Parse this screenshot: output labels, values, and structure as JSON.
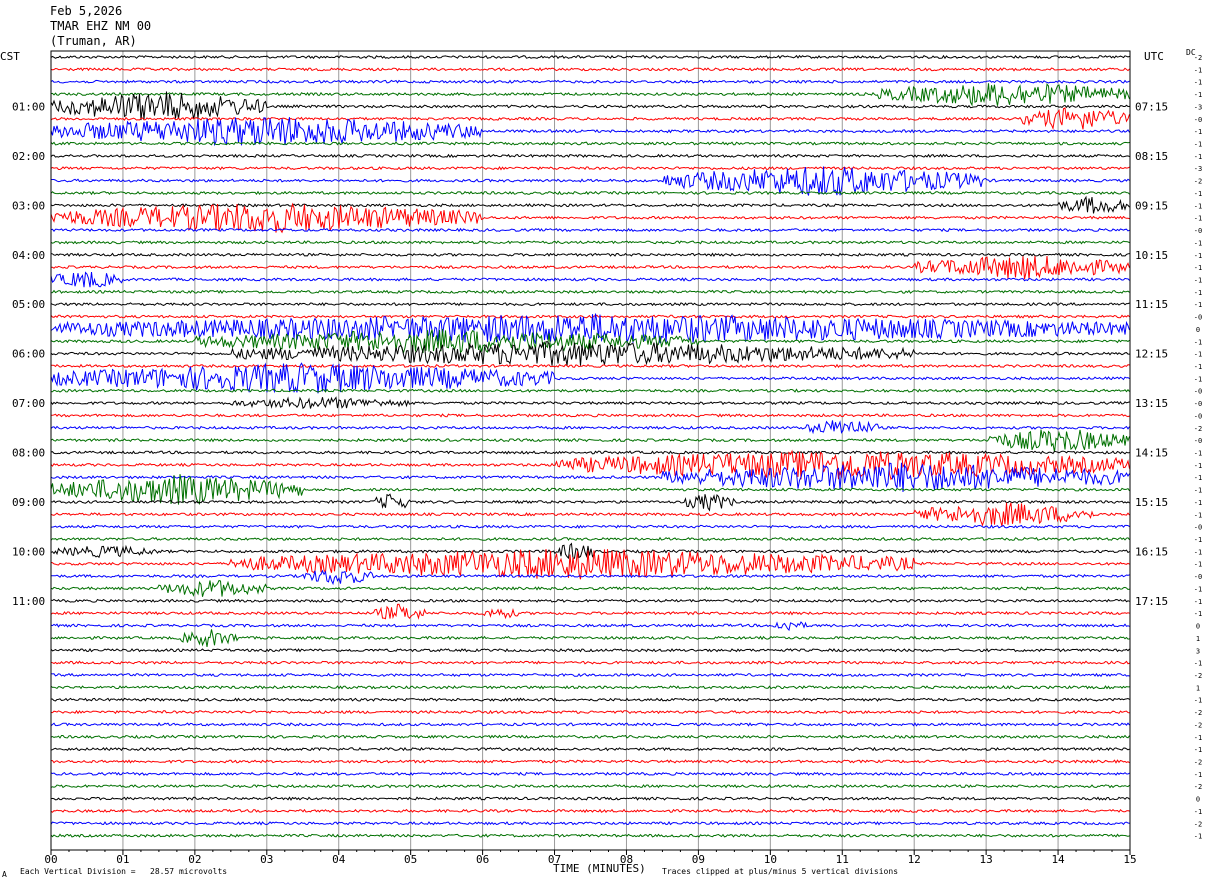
{
  "header": {
    "date": "Feb 5,2026",
    "station": "TMAR EHZ NM 00",
    "location": "(Truman, AR)"
  },
  "left_tz": "CST",
  "right_tz": "UTC",
  "dc_label": "DC",
  "footer": {
    "division": "Each Vertical Division =   28.57 microvolts",
    "clipped": "Traces clipped at plus/minus 5 vertical divisions",
    "small_mark": "A"
  },
  "colors": {
    "black": "#000000",
    "red": "#ff0000",
    "blue": "#0000ff",
    "green": "#007000"
  },
  "chart_data": {
    "type": "line",
    "title": "",
    "xlabel": "TIME (MINUTES)",
    "ylabel": "",
    "xlim": [
      0,
      15
    ],
    "x_ticks": [
      "00",
      "01",
      "02",
      "03",
      "04",
      "05",
      "06",
      "07",
      "08",
      "09",
      "10",
      "11",
      "12",
      "13",
      "14",
      "15"
    ],
    "trace_colors": [
      "black",
      "red",
      "blue",
      "green"
    ],
    "left_hour_labels": [
      "01:00",
      "02:00",
      "03:00",
      "04:00",
      "05:00",
      "06:00",
      "07:00",
      "08:00",
      "09:00",
      "10:00",
      "11:00"
    ],
    "right_hour_labels": [
      "07:15",
      "08:15",
      "09:15",
      "10:15",
      "11:15",
      "12:15",
      "13:15",
      "14:15",
      "15:15",
      "16:15",
      "17:15"
    ],
    "dc_offsets": [
      "-2",
      "-1",
      "-1",
      "-1",
      "-3",
      "-0",
      "-1",
      "-1",
      "-1",
      "-3",
      "-2",
      "-1",
      "-1",
      "-1",
      "-0",
      "-1",
      "-1",
      "-1",
      "-1",
      "-1",
      "-1",
      "-0",
      "0",
      "-1",
      "-1",
      "-1",
      "-1",
      "-0",
      "-0",
      "-0",
      "-2",
      "-0",
      "-1",
      "-1",
      "-1",
      "-1",
      "-1",
      "-1",
      "-0",
      "-1",
      "-1",
      "-1",
      "-0",
      "-1",
      "-1",
      "-1",
      "0",
      "1",
      "3",
      "-1",
      "-2",
      "1",
      "-1",
      "-2",
      "-2",
      "-1",
      "-1",
      "-2",
      "-1",
      "-2",
      "0",
      "-1",
      "-2",
      "-1"
    ],
    "events": [
      {
        "trace": 4,
        "start": 0.0,
        "end": 3.0,
        "amp": 5
      },
      {
        "trace": 6,
        "start": 0.0,
        "end": 6.0,
        "amp": 5
      },
      {
        "trace": 3,
        "start": 11.5,
        "end": 15,
        "amp": 4
      },
      {
        "trace": 5,
        "start": 13.5,
        "end": 15,
        "amp": 4
      },
      {
        "trace": 10,
        "start": 8.5,
        "end": 13.0,
        "amp": 5
      },
      {
        "trace": 13,
        "start": 0.0,
        "end": 6.0,
        "amp": 5
      },
      {
        "trace": 12,
        "start": 14.0,
        "end": 15,
        "amp": 3
      },
      {
        "trace": 17,
        "start": 12.0,
        "end": 15,
        "amp": 4
      },
      {
        "trace": 18,
        "start": 0.0,
        "end": 1.0,
        "amp": 3
      },
      {
        "trace": 22,
        "start": 0.0,
        "end": 15,
        "amp": 5
      },
      {
        "trace": 23,
        "start": 2.0,
        "end": 9.0,
        "amp": 4
      },
      {
        "trace": 24,
        "start": 2.5,
        "end": 12.0,
        "amp": 4
      },
      {
        "trace": 26,
        "start": 0.0,
        "end": 7.0,
        "amp": 5
      },
      {
        "trace": 28,
        "start": 2.5,
        "end": 5.0,
        "amp": 2
      },
      {
        "trace": 30,
        "start": 10.5,
        "end": 11.5,
        "amp": 3
      },
      {
        "trace": 31,
        "start": 13.0,
        "end": 15,
        "amp": 4
      },
      {
        "trace": 33,
        "start": 7.0,
        "end": 15,
        "amp": 5
      },
      {
        "trace": 34,
        "start": 8.5,
        "end": 15,
        "amp": 5
      },
      {
        "trace": 35,
        "start": 0.0,
        "end": 3.5,
        "amp": 5
      },
      {
        "trace": 36,
        "start": 4.5,
        "end": 5.0,
        "amp": 3
      },
      {
        "trace": 36,
        "start": 8.8,
        "end": 9.5,
        "amp": 3
      },
      {
        "trace": 37,
        "start": 12.0,
        "end": 14.5,
        "amp": 4
      },
      {
        "trace": 40,
        "start": 0.0,
        "end": 1.5,
        "amp": 2
      },
      {
        "trace": 40,
        "start": 7.0,
        "end": 7.6,
        "amp": 3
      },
      {
        "trace": 41,
        "start": 2.5,
        "end": 12.0,
        "amp": 5
      },
      {
        "trace": 42,
        "start": 3.5,
        "end": 4.5,
        "amp": 3
      },
      {
        "trace": 43,
        "start": 1.5,
        "end": 3.0,
        "amp": 3
      },
      {
        "trace": 45,
        "start": 4.5,
        "end": 5.2,
        "amp": 3
      },
      {
        "trace": 45,
        "start": 6.0,
        "end": 6.5,
        "amp": 2
      },
      {
        "trace": 46,
        "start": 10.0,
        "end": 10.5,
        "amp": 2
      },
      {
        "trace": 47,
        "start": 1.8,
        "end": 2.6,
        "amp": 3
      }
    ]
  }
}
